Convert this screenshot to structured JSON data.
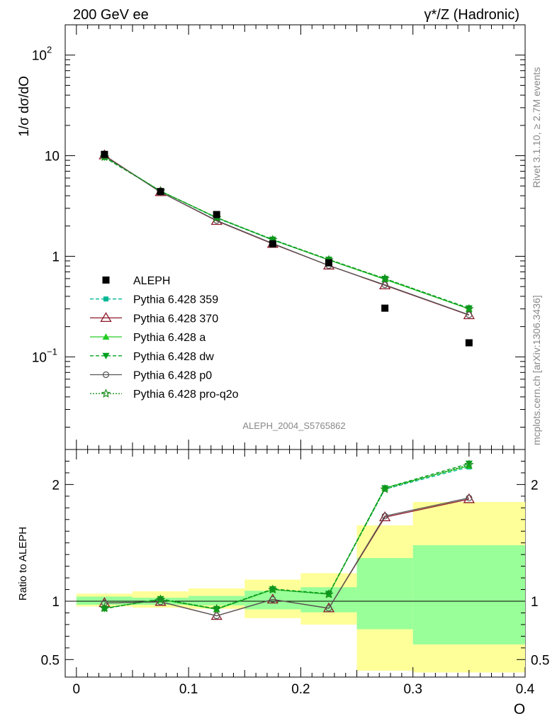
{
  "header": {
    "left": "200 GeV ee",
    "right": "γ*/Z (Hadronic)"
  },
  "side_text": {
    "rivet": "Rivet 3.1.10, ≥ 2.7M events",
    "mcplots": "mcplots.cern.ch [arXiv:1306.3436]"
  },
  "watermark": "ALEPH_2004_S5765862",
  "chart_data": [
    {
      "type": "line",
      "ylabel": "1/σ  dσ/dO",
      "yscale": "log",
      "ylim": [
        0.012,
        200
      ],
      "xlim": [
        -0.01,
        0.4
      ],
      "y_ticks": [
        {
          "value": 100,
          "label": "10",
          "sup": "2"
        },
        {
          "value": 10,
          "label": "10",
          "sup": ""
        },
        {
          "value": 1,
          "label": "1",
          "sup": ""
        },
        {
          "value": 0.1,
          "label": "10",
          "sup": "−1"
        }
      ],
      "data": {
        "name": "ALEPH",
        "x": [
          0.025,
          0.075,
          0.125,
          0.175,
          0.225,
          0.275,
          0.35
        ],
        "y": [
          10.3,
          4.4,
          2.6,
          1.33,
          0.86,
          0.305,
          0.138
        ]
      },
      "series": [
        {
          "name": "Pythia 6.428 359",
          "color": "#00b894",
          "dash": "5,3",
          "marker": "square",
          "y": [
            9.9,
            4.45,
            2.4,
            1.45,
            0.92,
            0.59,
            0.3
          ]
        },
        {
          "name": "Pythia 6.428 370",
          "color": "#8b1a2b",
          "dash": "",
          "marker": "triangle-open",
          "y": [
            10.1,
            4.35,
            2.25,
            1.33,
            0.81,
            0.515,
            0.26
          ]
        },
        {
          "name": "Pythia 6.428 a",
          "color": "#22cc22",
          "dash": "",
          "marker": "triangle",
          "y": [
            9.85,
            4.45,
            2.42,
            1.46,
            0.92,
            0.59,
            0.3
          ]
        },
        {
          "name": "Pythia 6.428 dw",
          "color": "#00a020",
          "dash": "5,3",
          "marker": "triangle-down",
          "y": [
            9.6,
            4.45,
            2.43,
            1.47,
            0.93,
            0.6,
            0.305
          ]
        },
        {
          "name": "Pythia 6.428 p0",
          "color": "#555555",
          "dash": "",
          "marker": "circle-open",
          "y": [
            10.0,
            4.35,
            2.27,
            1.34,
            0.81,
            0.52,
            0.262
          ]
        },
        {
          "name": "Pythia 6.428 pro-q2o",
          "color": "#1a8c1a",
          "dash": "2,2",
          "marker": "star",
          "y": [
            9.7,
            4.45,
            2.42,
            1.46,
            0.92,
            0.6,
            0.3
          ]
        }
      ]
    },
    {
      "type": "line",
      "ylabel": "Ratio to ALEPH",
      "xlabel": "O",
      "ylim": [
        0.35,
        2.3
      ],
      "xlim": [
        -0.01,
        0.4
      ],
      "x_ticks": [
        "0",
        "0.1",
        "0.2",
        "0.3",
        "0.4"
      ],
      "y_ticks": [
        "0.5",
        "1",
        "2"
      ],
      "x_edges": [
        0.0,
        0.05,
        0.1,
        0.15,
        0.2,
        0.25,
        0.3,
        0.4
      ],
      "band_stat": [
        [
          0.97,
          1.04
        ],
        [
          0.97,
          1.03
        ],
        [
          0.965,
          1.045
        ],
        [
          0.93,
          1.09
        ],
        [
          0.905,
          1.12
        ],
        [
          0.76,
          1.37
        ],
        [
          0.63,
          1.48
        ]
      ],
      "band_total": [
        [
          0.955,
          1.065
        ],
        [
          0.945,
          1.085
        ],
        [
          0.935,
          1.11
        ],
        [
          0.855,
          1.185
        ],
        [
          0.8,
          1.24
        ],
        [
          0.405,
          1.65
        ],
        [
          0.39,
          1.85
        ]
      ],
      "x": [
        0.025,
        0.075,
        0.125,
        0.175,
        0.225,
        0.275,
        0.35
      ],
      "series": [
        {
          "name": "Pythia 6.428 359",
          "y": [
            0.94,
            1.015,
            0.93,
            1.1,
            1.06,
            1.96,
            2.15
          ]
        },
        {
          "name": "Pythia 6.428 370",
          "y": [
            0.985,
            0.995,
            0.875,
            1.015,
            0.94,
            1.72,
            1.875
          ]
        },
        {
          "name": "Pythia 6.428 a",
          "y": [
            0.94,
            1.015,
            0.93,
            1.1,
            1.06,
            1.97,
            2.16
          ]
        },
        {
          "name": "Pythia 6.428 dw",
          "y": [
            0.935,
            1.02,
            0.935,
            1.105,
            1.065,
            1.97,
            2.18
          ]
        },
        {
          "name": "Pythia 6.428 p0",
          "y": [
            0.985,
            0.995,
            0.875,
            1.015,
            0.94,
            1.73,
            1.885
          ]
        },
        {
          "name": "Pythia 6.428 pro-q2o",
          "y": [
            0.94,
            1.015,
            0.935,
            1.1,
            1.06,
            1.96,
            2.17
          ]
        }
      ]
    }
  ]
}
